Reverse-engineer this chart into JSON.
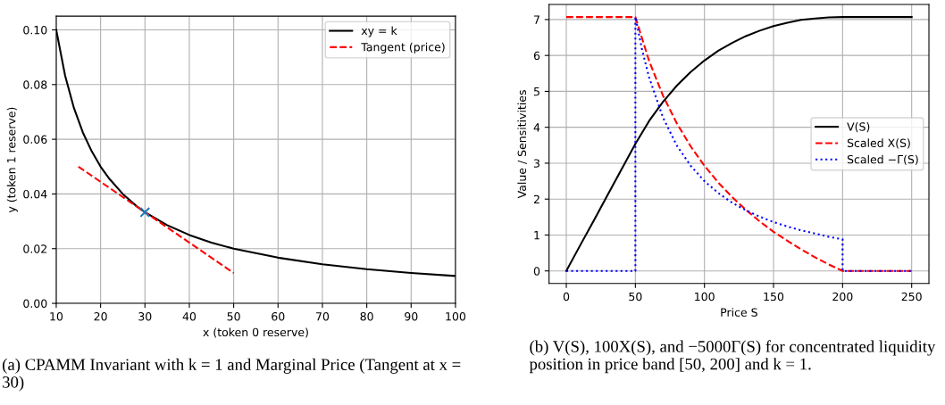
{
  "chart_data": [
    {
      "type": "line",
      "xlabel": "x (token 0 reserve)",
      "ylabel": "y (token 1 reserve)",
      "xlim": [
        10,
        100
      ],
      "xticks": [
        10,
        20,
        30,
        40,
        50,
        60,
        70,
        80,
        90,
        100
      ],
      "ylim": [
        0,
        0.105
      ],
      "yticks": [
        {
          "value": 0,
          "label": "0.00"
        },
        {
          "value": 0.02,
          "label": "0.02"
        },
        {
          "value": 0.04,
          "label": "0.04"
        },
        {
          "value": 0.06,
          "label": "0.06"
        },
        {
          "value": 0.08,
          "label": "0.08"
        },
        {
          "value": 0.1,
          "label": "0.10"
        }
      ],
      "grid": true,
      "legend": "upper right",
      "series": [
        {
          "name": "xy = k",
          "color": "#000000",
          "line_style": "solid",
          "x": [
            10,
            12,
            14,
            16,
            18,
            20,
            22,
            25,
            28,
            30,
            35,
            40,
            45,
            50,
            60,
            70,
            80,
            90,
            100
          ],
          "values": [
            0.1,
            0.0833,
            0.0714,
            0.0625,
            0.0556,
            0.05,
            0.0455,
            0.04,
            0.0357,
            0.0333,
            0.0286,
            0.025,
            0.0222,
            0.02,
            0.0167,
            0.0143,
            0.0125,
            0.0111,
            0.01
          ]
        },
        {
          "name": "Tangent (price)",
          "color": "#ff0000",
          "line_style": "dashed",
          "x": [
            15,
            50
          ],
          "values": [
            0.05,
            0.0111
          ]
        },
        {
          "type": "scatter",
          "marker": "cross",
          "color": "#1f77b4",
          "x": [
            30
          ],
          "values": [
            0.0333
          ]
        }
      ],
      "annotations": [
        "(a) CPAMM Invariant with k = 1 and Marginal Price (Tangent at x = 30)"
      ]
    },
    {
      "type": "line",
      "xlabel": "Price S",
      "ylabel": "Value / Sensitivities",
      "xlim": [
        -12.5,
        262.5
      ],
      "xticks": [
        0,
        50,
        100,
        150,
        200,
        250
      ],
      "ylim": [
        -0.35,
        7.42
      ],
      "yticks": [
        0,
        1,
        2,
        3,
        4,
        5,
        6,
        7
      ],
      "grid": true,
      "legend": "center right",
      "series": [
        {
          "name": "V(S)",
          "color": "#000000",
          "line_style": "solid",
          "x": [
            0,
            10,
            20,
            30,
            40,
            50,
            60,
            70,
            80,
            90,
            100,
            110,
            120,
            130,
            140,
            150,
            160,
            170,
            180,
            190,
            200,
            250
          ],
          "values": [
            0,
            0.71,
            1.41,
            2.12,
            2.83,
            3.54,
            4.18,
            4.71,
            5.16,
            5.54,
            5.86,
            6.13,
            6.35,
            6.54,
            6.69,
            6.82,
            6.91,
            6.99,
            7.03,
            7.06,
            7.07,
            7.07
          ]
        },
        {
          "name": "Scaled X(S)",
          "color": "#ff0000",
          "line_style": "dashed",
          "x": [
            0,
            50,
            60,
            70,
            80,
            90,
            100,
            110,
            120,
            130,
            140,
            150,
            160,
            170,
            180,
            190,
            200,
            250
          ],
          "values": [
            7.07,
            7.07,
            5.84,
            4.88,
            4.11,
            3.47,
            2.93,
            2.46,
            2.06,
            1.7,
            1.38,
            1.09,
            0.84,
            0.6,
            0.38,
            0.18,
            0,
            0
          ]
        },
        {
          "name": "Scaled −Γ(S)",
          "color": "#0000ff",
          "line_style": "dotted",
          "x": [
            0,
            50,
            50,
            55,
            60,
            70,
            80,
            90,
            100,
            110,
            120,
            130,
            140,
            150,
            160,
            170,
            180,
            190,
            200,
            200,
            250
          ],
          "values": [
            0,
            0,
            7.07,
            6.13,
            5.38,
            4.27,
            3.49,
            2.93,
            2.5,
            2.17,
            1.9,
            1.69,
            1.51,
            1.36,
            1.24,
            1.13,
            1.04,
            0.95,
            0.88,
            0,
            0
          ]
        }
      ],
      "annotations": [
        "(b) V(S), 100X(S), and −5000Γ(S) for concentrated liquidity position in price band [50, 200] and k = 1."
      ]
    }
  ]
}
